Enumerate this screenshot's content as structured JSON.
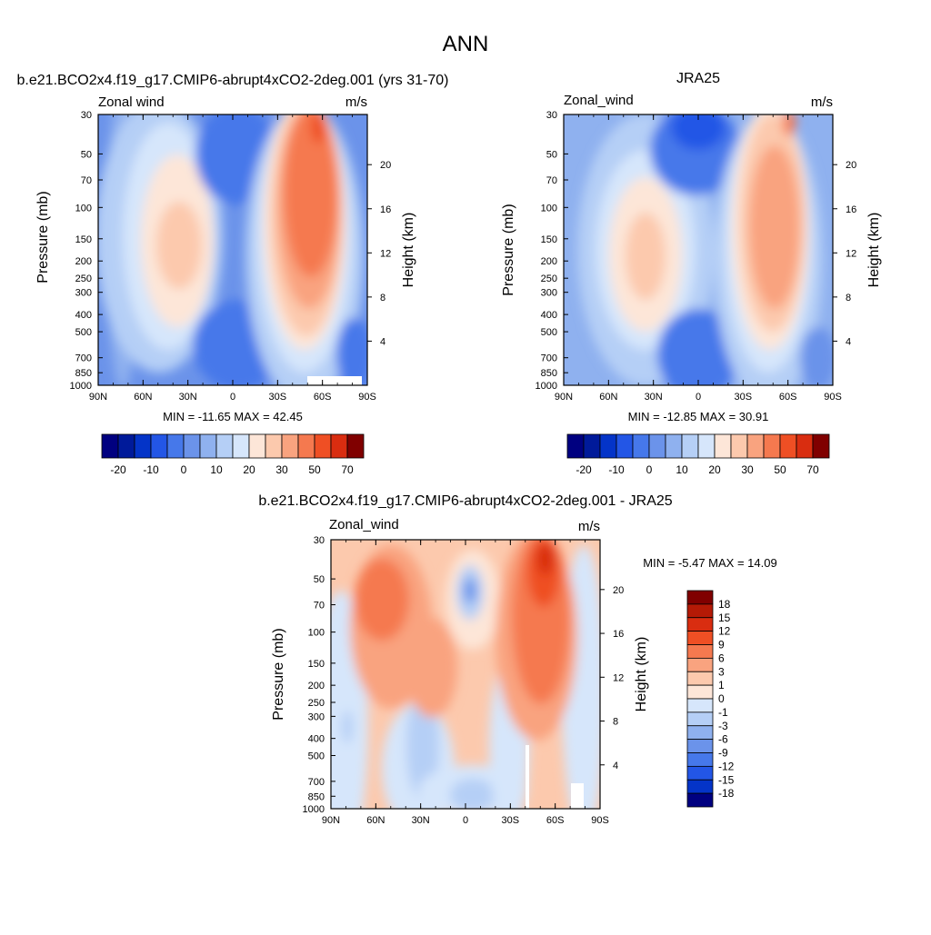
{
  "page": {
    "title": "ANN"
  },
  "colors": {
    "warm": [
      "#fde6d8",
      "#fcc9ad",
      "#f9a37f",
      "#f5794f",
      "#ef4f24",
      "#d92d10",
      "#b41a06",
      "#800000"
    ],
    "cool": [
      "#d6e6fb",
      "#b5cff6",
      "#8fb1ef",
      "#6b93ea",
      "#4678ea",
      "#2356e6",
      "#0434c8",
      "#001a9a",
      "#000080"
    ]
  },
  "chart_data": [
    {
      "id": "model",
      "type": "contour",
      "title": "b.e21.BCO2x4.f19_g17.CMIP6-abrupt4xCO2-2deg.001 (yrs 31-70)",
      "left_label": "Zonal wind",
      "units": "m/s",
      "xlabel": "",
      "ylabel": "Pressure (mb)",
      "right_label": "Height (km)",
      "x_ticks": [
        "90N",
        "60N",
        "30N",
        "0",
        "30S",
        "60S",
        "90S"
      ],
      "y_ticks": [
        "30",
        "50",
        "70",
        "100",
        "150",
        "200",
        "250",
        "300",
        "400",
        "500",
        "700",
        "850",
        "1000"
      ],
      "height_ticks": [
        "20",
        "16",
        "12",
        "8",
        "4"
      ],
      "min_max": "MIN = -11.65  MAX =  42.45",
      "colorbar_labels": [
        "-20",
        "-10",
        "0",
        "10",
        "20",
        "30",
        "50",
        "70"
      ],
      "jets": [
        {
          "lat": -50,
          "pressure_mb": 150,
          "value": 42.45
        },
        {
          "lat": 30,
          "pressure_mb": 170,
          "value": 25
        }
      ],
      "min_value": -11.65,
      "max_value": 42.45
    },
    {
      "id": "obs",
      "type": "contour",
      "title": "JRA25",
      "left_label": "Zonal_wind",
      "units": "m/s",
      "xlabel": "",
      "ylabel": "Pressure (mb)",
      "right_label": "Height (km)",
      "x_ticks": [
        "90N",
        "60N",
        "30N",
        "0",
        "30S",
        "60S",
        "90S"
      ],
      "y_ticks": [
        "30",
        "50",
        "70",
        "100",
        "150",
        "200",
        "250",
        "300",
        "400",
        "500",
        "700",
        "850",
        "1000"
      ],
      "height_ticks": [
        "20",
        "16",
        "12",
        "8",
        "4"
      ],
      "min_max": "MIN = -12.85  MAX =  30.91",
      "colorbar_labels": [
        "-20",
        "-10",
        "0",
        "10",
        "20",
        "30",
        "50",
        "70"
      ],
      "jets": [
        {
          "lat": -30,
          "pressure_mb": 200,
          "value": 30.91
        },
        {
          "lat": 30,
          "pressure_mb": 180,
          "value": 22
        }
      ],
      "min_value": -12.85,
      "max_value": 30.91
    },
    {
      "id": "diff",
      "type": "contour",
      "title": "b.e21.BCO2x4.f19_g17.CMIP6-abrupt4xCO2-2deg.001 - JRA25",
      "left_label": "Zonal_wind",
      "units": "m/s",
      "xlabel": "",
      "ylabel": "Pressure (mb)",
      "right_label": "Height (km)",
      "x_ticks": [
        "90N",
        "60N",
        "30N",
        "0",
        "30S",
        "60S",
        "90S"
      ],
      "y_ticks": [
        "30",
        "50",
        "70",
        "100",
        "150",
        "200",
        "250",
        "300",
        "400",
        "500",
        "700",
        "850",
        "1000"
      ],
      "height_ticks": [
        "20",
        "16",
        "12",
        "8",
        "4"
      ],
      "min_max": "MIN =  -5.47  MAX =  14.09",
      "colorbar_labels": [
        "18",
        "15",
        "12",
        "9",
        "6",
        "3",
        "1",
        "0",
        "-1",
        "-3",
        "-6",
        "-9",
        "-12",
        "-15",
        "-18"
      ],
      "min_value": -5.47,
      "max_value": 14.09
    }
  ]
}
